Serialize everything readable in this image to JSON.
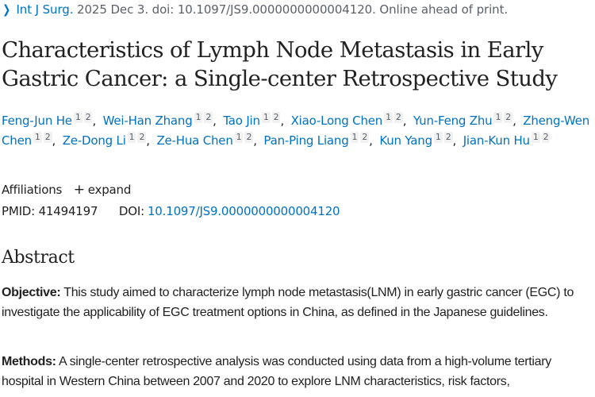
{
  "citation": {
    "chevron_icon": "chevron-right-icon",
    "journal": "Int J Surg.",
    "details": " 2025 Dec 3. doi: 10.1097/JS9.0000000000004120. Online ahead of print."
  },
  "article": {
    "title": "Characteristics of Lymph Node Metastasis in Early Gastric Cancer: a Single-center Retrospective Study"
  },
  "authors": [
    {
      "name": "Feng-Jun He",
      "affiliations": [
        "1",
        "2"
      ]
    },
    {
      "name": "Wei-Han Zhang",
      "affiliations": [
        "1",
        "2"
      ]
    },
    {
      "name": "Tao Jin",
      "affiliations": [
        "1",
        "2"
      ]
    },
    {
      "name": "Xiao-Long Chen",
      "affiliations": [
        "1",
        "2"
      ]
    },
    {
      "name": "Yun-Feng Zhu",
      "affiliations": [
        "1",
        "2"
      ]
    },
    {
      "name": "Zheng-Wen Chen",
      "affiliations": [
        "1",
        "2"
      ]
    },
    {
      "name": "Ze-Dong Li",
      "affiliations": [
        "1",
        "2"
      ]
    },
    {
      "name": "Ze-Hua Chen",
      "affiliations": [
        "1",
        "2"
      ]
    },
    {
      "name": "Pan-Ping Liang",
      "affiliations": [
        "1",
        "2"
      ]
    },
    {
      "name": "Kun Yang",
      "affiliations": [
        "1",
        "2"
      ]
    },
    {
      "name": "Jian-Kun Hu",
      "affiliations": [
        "1",
        "2"
      ]
    }
  ],
  "affiliations": {
    "label": "Affiliations",
    "expand_icon": "plus-icon",
    "expand_label": "expand"
  },
  "identifiers": {
    "pmid_label": "PMID:",
    "pmid": "41494197",
    "doi_label": "DOI:",
    "doi": "10.1097/JS9.0000000000004120"
  },
  "abstract": {
    "heading": "Abstract",
    "objective_label": "Objective:",
    "objective_text": " This study aimed to characterize lymph node metastasis(LNM) in early gastric cancer (EGC) to investigate the applicability of EGC treatment options in China, as defined in the Japanese guidelines.",
    "methods_label": "Methods:",
    "methods_text": " A single-center retrospective analysis was conducted using data from a high-volume tertiary hospital in Western China between 2007 and 2020 to explore LNM characteristics, risk factors,"
  },
  "colors": {
    "link": "#0071bc",
    "text": "#212121",
    "muted": "#5b616b",
    "badge_bg": "#f1f1f1"
  }
}
